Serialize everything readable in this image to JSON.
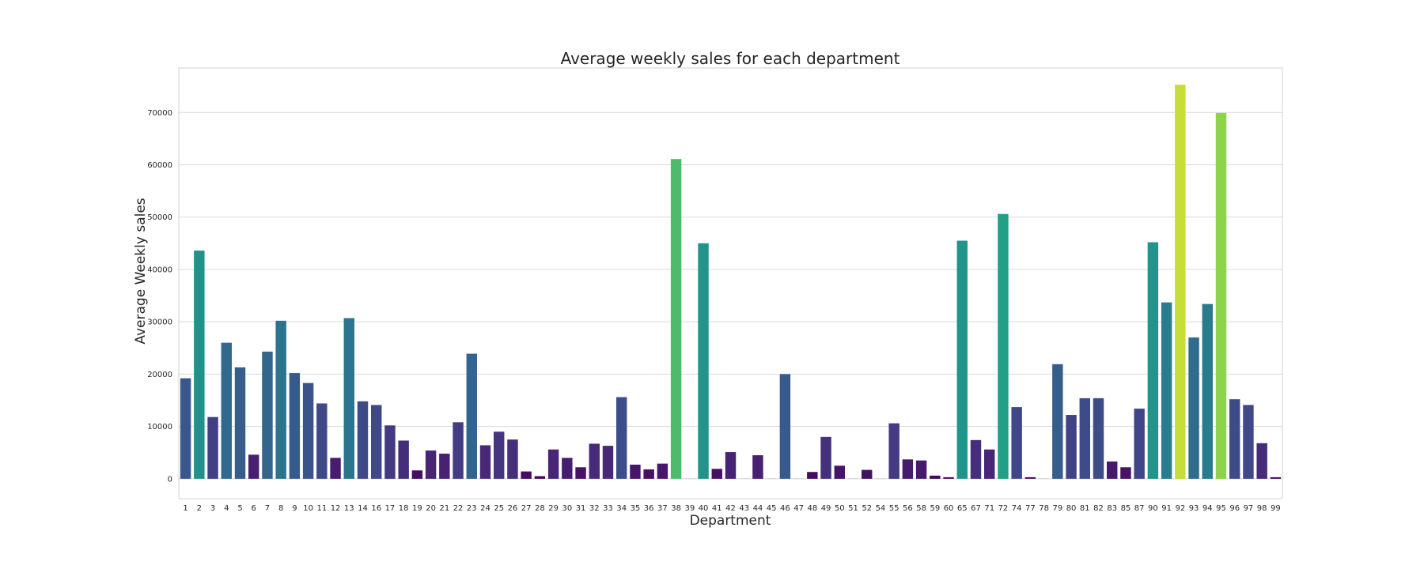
{
  "chart_data": {
    "type": "bar",
    "title": "Average weekly sales for each department",
    "xlabel": "Department",
    "ylabel": "Average Weekly sales",
    "ylim": [
      -3800,
      78500
    ],
    "yticks": [
      0,
      10000,
      20000,
      30000,
      40000,
      50000,
      60000,
      70000
    ],
    "grid": "horizontal",
    "legend": "none",
    "colormap": "viridis",
    "categories": [
      "1",
      "2",
      "3",
      "4",
      "5",
      "6",
      "7",
      "8",
      "9",
      "10",
      "11",
      "12",
      "13",
      "14",
      "16",
      "17",
      "18",
      "19",
      "20",
      "21",
      "22",
      "23",
      "24",
      "25",
      "26",
      "27",
      "28",
      "29",
      "30",
      "31",
      "32",
      "33",
      "34",
      "35",
      "36",
      "37",
      "38",
      "39",
      "40",
      "41",
      "42",
      "43",
      "44",
      "45",
      "46",
      "47",
      "48",
      "49",
      "50",
      "51",
      "52",
      "54",
      "55",
      "56",
      "58",
      "59",
      "60",
      "65",
      "67",
      "71",
      "72",
      "74",
      "77",
      "78",
      "79",
      "80",
      "81",
      "82",
      "83",
      "85",
      "87",
      "90",
      "91",
      "92",
      "93",
      "94",
      "95",
      "96",
      "97",
      "98",
      "99"
    ],
    "values": [
      19200,
      43600,
      11800,
      26000,
      21300,
      4600,
      24300,
      30200,
      20200,
      18300,
      14400,
      4000,
      30700,
      14800,
      14100,
      10200,
      7300,
      1600,
      5400,
      4800,
      10800,
      23900,
      6400,
      9000,
      7500,
      1400,
      500,
      5600,
      4000,
      2200,
      6700,
      6300,
      15600,
      2700,
      1800,
      2900,
      61100,
      10,
      45000,
      1900,
      5100,
      10,
      4500,
      10,
      20000,
      10,
      1300,
      8000,
      2500,
      10,
      1700,
      10,
      10600,
      3700,
      3500,
      600,
      300,
      45500,
      7400,
      5600,
      50600,
      13700,
      300,
      10,
      21900,
      12200,
      15400,
      15400,
      3300,
      2200,
      13400,
      45200,
      33700,
      75300,
      27000,
      33400,
      69900,
      15200,
      14100,
      6800,
      300
    ]
  }
}
